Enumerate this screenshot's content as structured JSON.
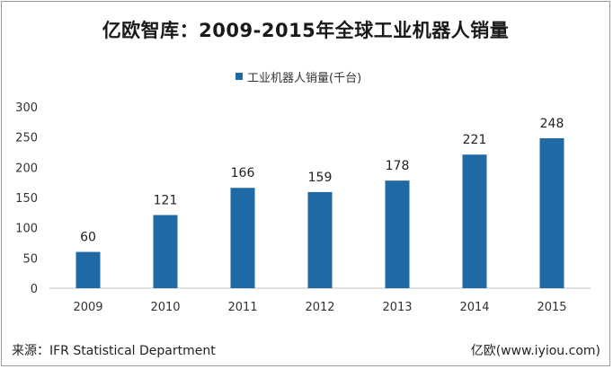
{
  "chart_data": {
    "type": "bar",
    "title": "亿欧智库：2009-2015年全球工业机器人销量",
    "categories": [
      "2009",
      "2010",
      "2011",
      "2012",
      "2013",
      "2014",
      "2015"
    ],
    "series": [
      {
        "name": "工业机器人销量(千台)",
        "values": [
          60,
          121,
          166,
          159,
          178,
          221,
          248
        ]
      }
    ],
    "data_labels": [
      "60",
      "121",
      "166",
      "159",
      "178",
      "221",
      "248"
    ],
    "yticks": [
      "0",
      "50",
      "100",
      "150",
      "200",
      "250",
      "300"
    ],
    "ylim": [
      0,
      300
    ],
    "grid": false,
    "legend": "top-center",
    "bar_color": "#1f6aa5"
  },
  "footer": {
    "source": "来源：IFR Statistical Department",
    "brand": "亿欧(www.iyiou.com)"
  }
}
